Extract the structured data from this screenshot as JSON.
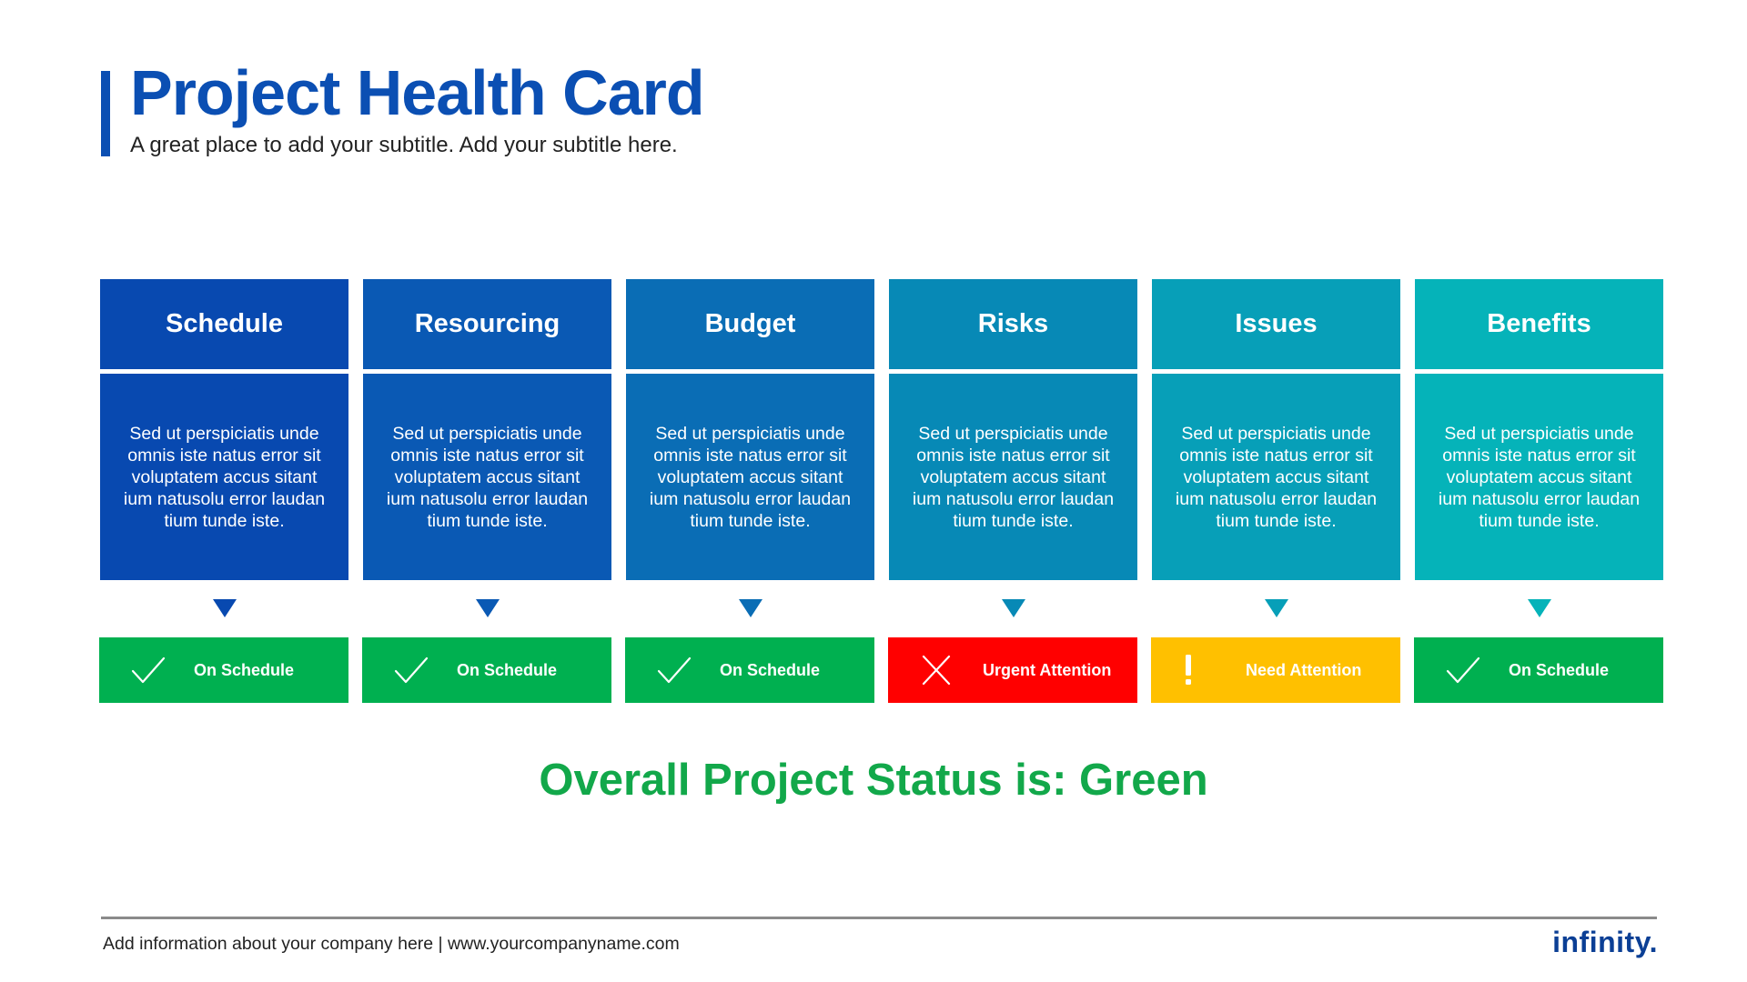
{
  "header": {
    "title": "Project Health Card",
    "subtitle": "A great place to add your subtitle. Add your subtitle here."
  },
  "colors": {
    "title": "#0b4fb3",
    "green": "#00b050",
    "red": "#ff0000",
    "amber": "#ffc000",
    "overall_text": "#12a84a"
  },
  "columns": [
    {
      "header": "Schedule",
      "header_color": "#0849b0",
      "body": "Sed ut perspiciatis unde omnis iste natus error sit voluptatem accus sitant ium natusolu error laudan tium tunde iste.",
      "status": "On Schedule",
      "status_icon": "check-icon",
      "status_color": "#00b050"
    },
    {
      "header": "Resourcing",
      "header_color": "#0a59b4",
      "body": "Sed ut perspiciatis unde omnis iste natus error sit voluptatem accus sitant ium natusolu error laudan tium tunde iste.",
      "status": "On Schedule",
      "status_icon": "check-icon",
      "status_color": "#00b050"
    },
    {
      "header": "Budget",
      "header_color": "#0a6db5",
      "body": "Sed ut perspiciatis unde omnis iste natus error sit voluptatem accus sitant ium natusolu error laudan tium tunde iste.",
      "status": "On Schedule",
      "status_icon": "check-icon",
      "status_color": "#00b050"
    },
    {
      "header": "Risks",
      "header_color": "#0789b6",
      "body": "Sed ut perspiciatis unde omnis iste natus error sit voluptatem accus sitant ium natusolu error laudan tium tunde iste.",
      "status": "Urgent Attention",
      "status_icon": "x-icon",
      "status_color": "#ff0000"
    },
    {
      "header": "Issues",
      "header_color": "#079fb8",
      "body": "Sed ut perspiciatis unde omnis iste natus error sit voluptatem accus sitant ium natusolu error laudan tium tunde iste.",
      "status": "Need Attention",
      "status_icon": "exclamation-icon",
      "status_color": "#ffc000"
    },
    {
      "header": "Benefits",
      "header_color": "#05b3b9",
      "body": "Sed ut perspiciatis unde omnis iste natus error sit voluptatem accus sitant ium natusolu error laudan tium tunde iste.",
      "status": "On Schedule",
      "status_icon": "check-icon",
      "status_color": "#00b050"
    }
  ],
  "overall_status": "Overall Project Status is: Green",
  "footer": {
    "text": "Add information about your company here | www.yourcompanyname.com",
    "logo": "infinity."
  }
}
